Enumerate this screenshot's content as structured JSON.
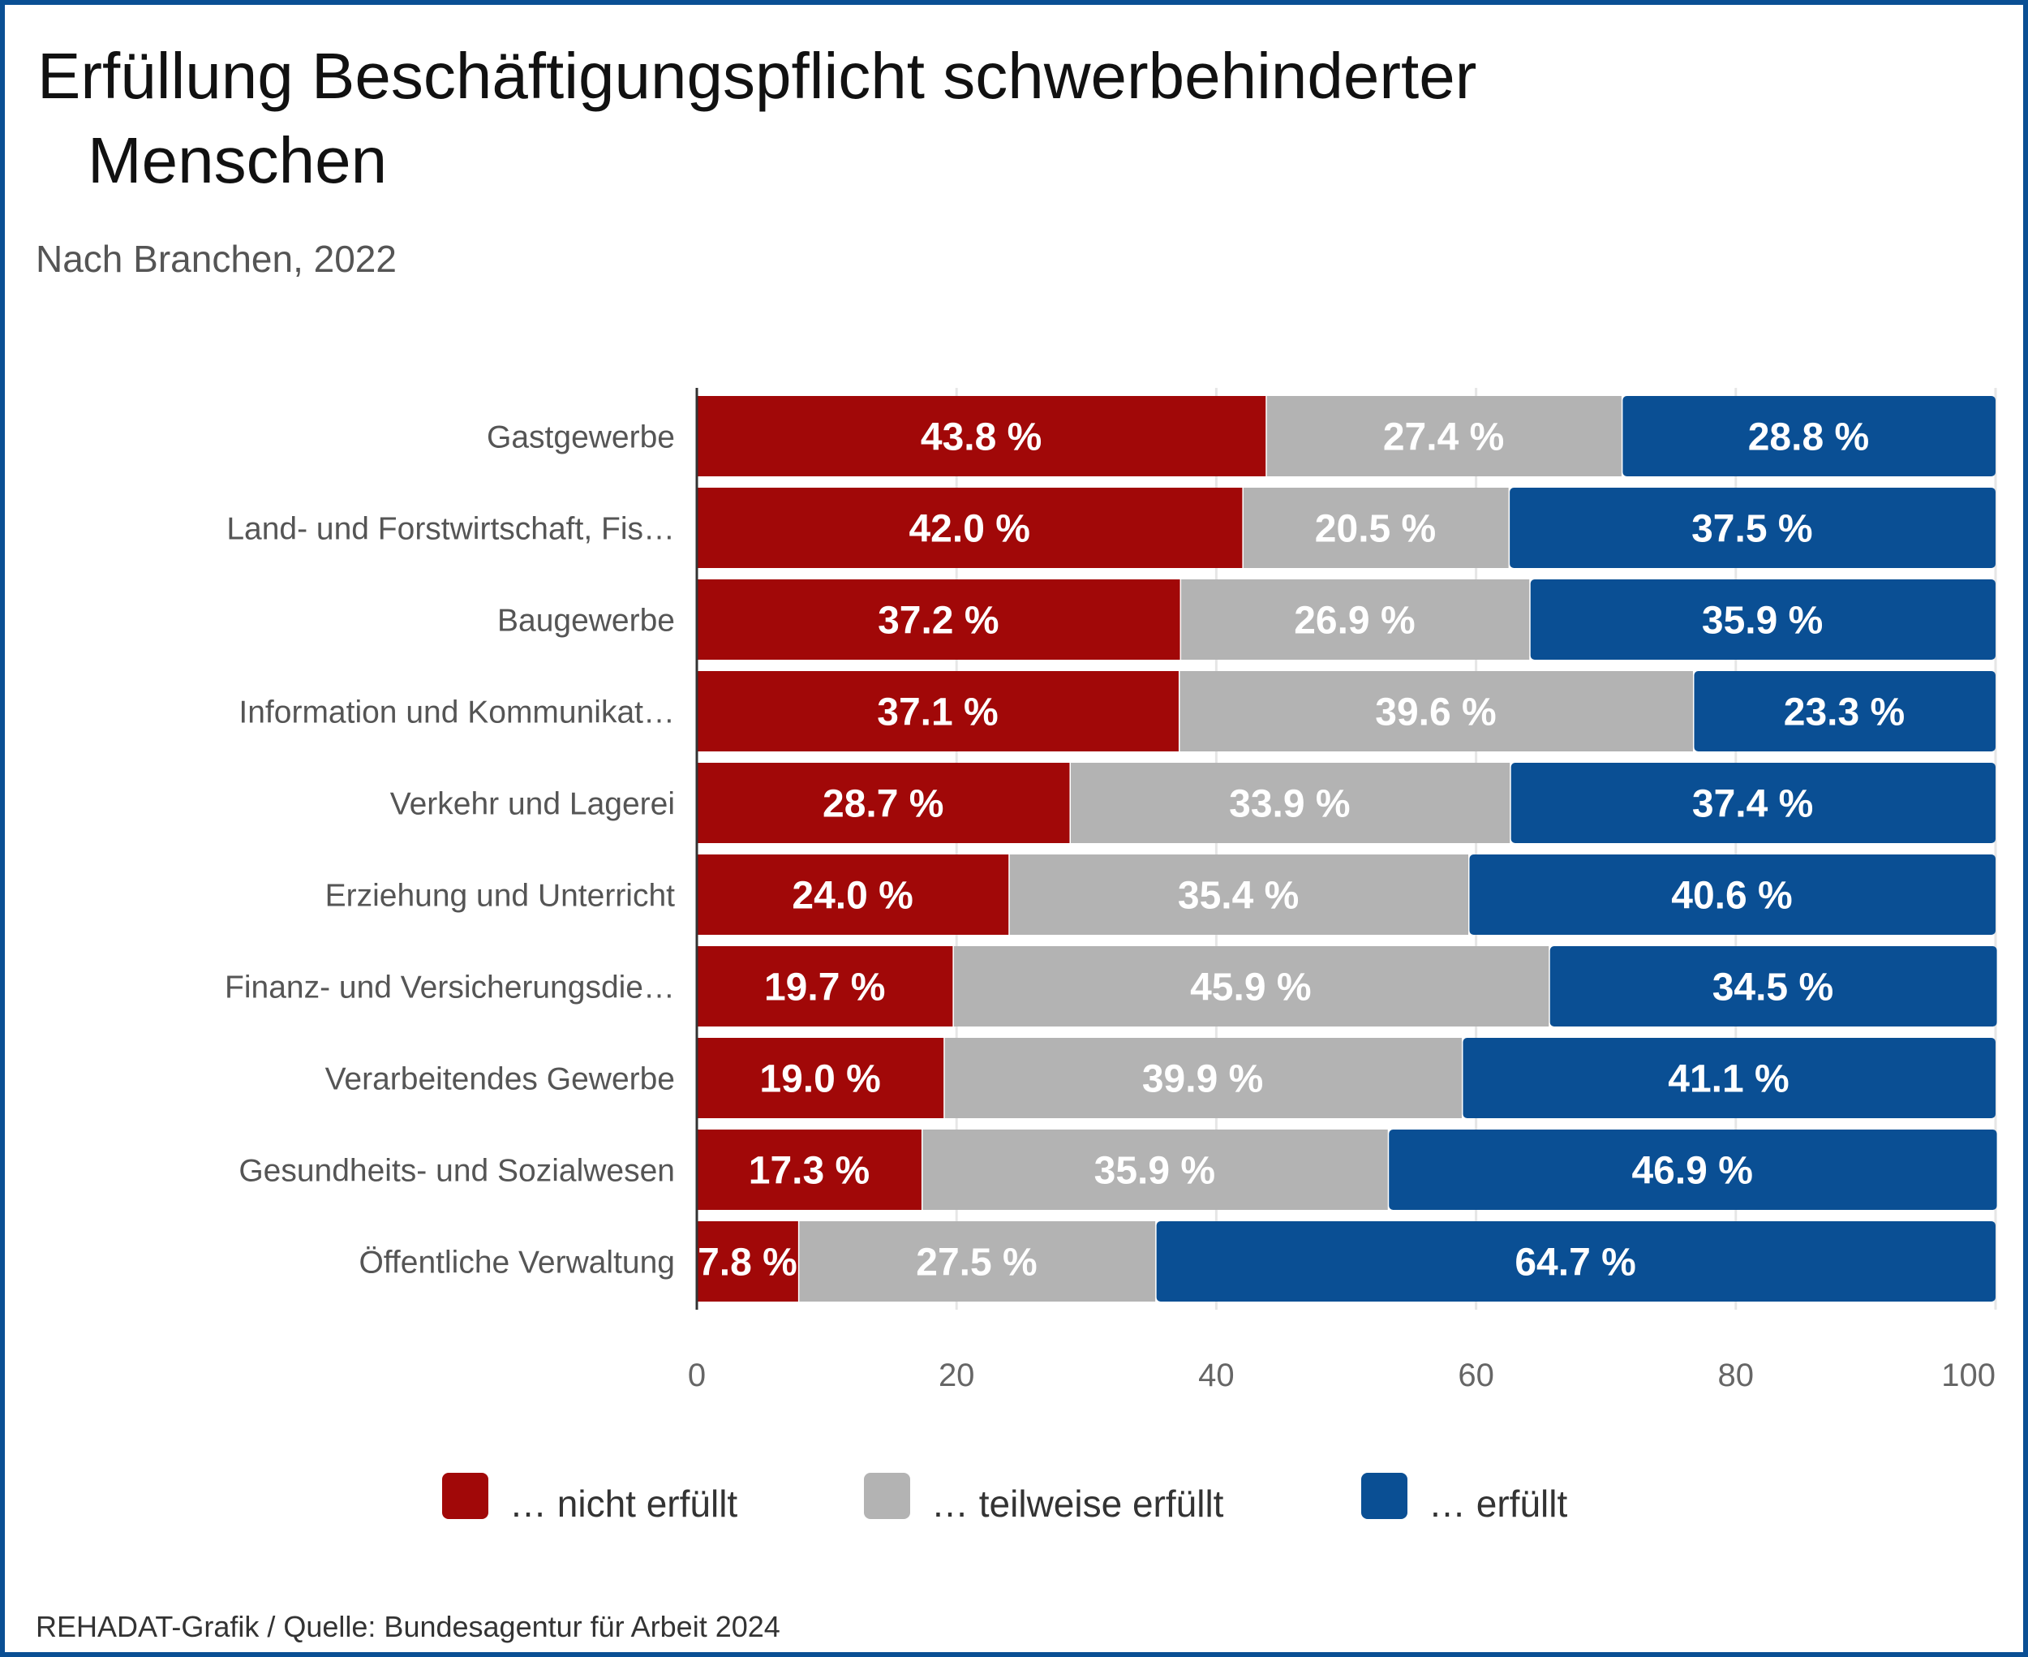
{
  "chart_data": {
    "type": "bar",
    "orientation": "horizontal",
    "stacked": true,
    "title": "Erfüllung Beschäftigungspflicht schwerbehinderter Menschen",
    "title_lines": [
      "Erfüllung Beschäftigungspflicht schwerbehinderter",
      "Menschen"
    ],
    "subtitle": "Nach Branchen, 2022",
    "source": "REHADAT-Grafik / Quelle: Bundesagentur für Arbeit 2024",
    "categories": [
      "Gastgewerbe",
      "Land- und Forstwirtschaft, Fis…",
      "Baugewerbe",
      "Information und Kommunikat…",
      "Verkehr und Lagerei",
      "Erziehung und Unterricht",
      "Finanz- und Versicherungsdie…",
      "Verarbeitendes Gewerbe",
      "Gesundheits- und Sozialwesen",
      "Öffentliche Verwaltung"
    ],
    "series": [
      {
        "name": "… nicht erfüllt",
        "color": "#a10808",
        "values": [
          43.8,
          42.0,
          37.2,
          37.1,
          28.7,
          24.0,
          19.7,
          19.0,
          17.3,
          7.8
        ]
      },
      {
        "name": "… teilweise erfüllt",
        "color": "#b3b3b3",
        "values": [
          27.4,
          20.5,
          26.9,
          39.6,
          33.9,
          35.4,
          45.9,
          39.9,
          35.9,
          27.5
        ]
      },
      {
        "name": "… erfüllt",
        "color": "#0a4f94",
        "values": [
          28.8,
          37.5,
          35.9,
          23.3,
          37.4,
          40.6,
          34.5,
          41.1,
          46.9,
          64.7
        ]
      }
    ],
    "value_suffix": " %",
    "xlim": [
      0,
      100
    ],
    "xticks": [
      0,
      20,
      40,
      60,
      80,
      100
    ],
    "grid": true,
    "legend_position": "bottom"
  }
}
